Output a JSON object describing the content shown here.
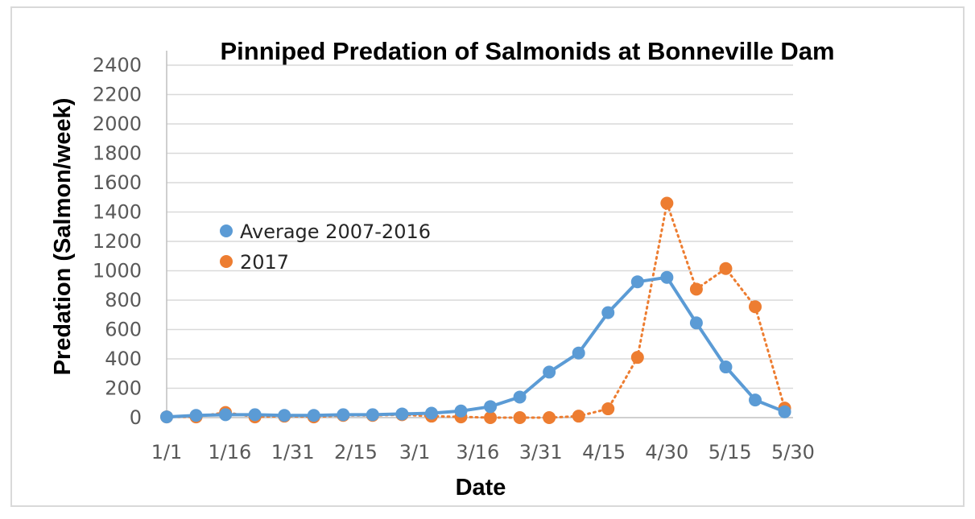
{
  "chart_data": {
    "type": "line",
    "title": "Pinniped Predation of Salmonids at Bonneville Dam",
    "xlabel": "Date",
    "ylabel": "Predation (Salmon/week)",
    "ylim": [
      0,
      2400
    ],
    "yticks": [
      0,
      200,
      400,
      600,
      800,
      1000,
      1200,
      1400,
      1600,
      1800,
      2000,
      2200,
      2400
    ],
    "xlim": [
      0,
      149
    ],
    "xticks": [
      {
        "label": "1/1",
        "day": 0
      },
      {
        "label": "1/16",
        "day": 15
      },
      {
        "label": "1/31",
        "day": 30
      },
      {
        "label": "2/15",
        "day": 45
      },
      {
        "label": "3/1",
        "day": 59
      },
      {
        "label": "3/16",
        "day": 74
      },
      {
        "label": "3/31",
        "day": 89
      },
      {
        "label": "4/15",
        "day": 104
      },
      {
        "label": "4/30",
        "day": 119
      },
      {
        "label": "5/15",
        "day": 134
      },
      {
        "label": "5/30",
        "day": 149
      }
    ],
    "x": [
      0,
      7,
      14,
      21,
      28,
      35,
      42,
      49,
      56,
      63,
      70,
      77,
      84,
      91,
      98,
      105,
      112,
      119,
      126,
      133,
      140,
      147
    ],
    "grid": true,
    "legend_position": "left",
    "series": [
      {
        "name": "Average 2007-2016",
        "color": "#5b9bd5",
        "line_style": "solid",
        "values": [
          5,
          15,
          20,
          20,
          15,
          15,
          20,
          20,
          25,
          30,
          45,
          75,
          140,
          310,
          440,
          715,
          925,
          955,
          645,
          345,
          120,
          40
        ]
      },
      {
        "name": "2017",
        "color": "#ed7d31",
        "line_style": "dotted",
        "values": [
          5,
          5,
          35,
          5,
          10,
          5,
          15,
          15,
          20,
          10,
          5,
          0,
          0,
          0,
          10,
          60,
          410,
          1460,
          875,
          1015,
          755,
          65
        ]
      }
    ]
  }
}
